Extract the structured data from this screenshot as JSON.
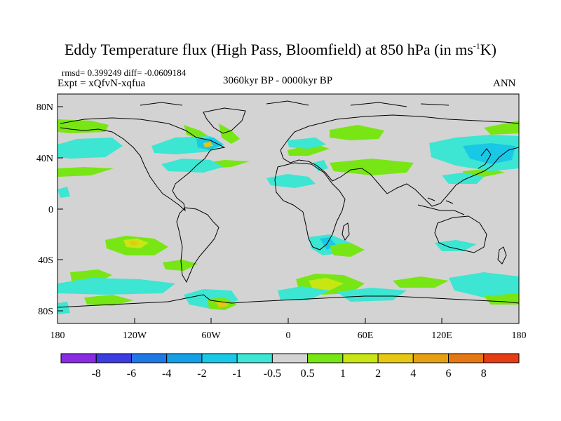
{
  "title": {
    "main": "Eddy Temperature flux (High Pass, Bloomfield) at 850 hPa (in ms",
    "superscript": "-1",
    "suffix": "K)"
  },
  "stats_line": "rmsd= 0.399249 diff= -0.0609184",
  "experiment": "Expt = xQfvN-xqfua",
  "period": "3060kyr BP - 0000kyr BP",
  "season": "ANN",
  "lat_labels": [
    "80N",
    "40N",
    "0",
    "40S",
    "80S"
  ],
  "lon_labels": [
    "180",
    "120W",
    "60W",
    "0",
    "60E",
    "120E",
    "180"
  ],
  "colorbar": {
    "labels": [
      "-8",
      "-6",
      "-4",
      "-2",
      "-1",
      "-0.5",
      "0.5",
      "1",
      "2",
      "4",
      "6",
      "8"
    ],
    "colors": [
      "#8a2be2",
      "#3c3ce0",
      "#1e78e6",
      "#14a0e6",
      "#19c8e6",
      "#3ce6d2",
      "#d3d3d3",
      "#78e614",
      "#c8e614",
      "#e6c814",
      "#e6a014",
      "#e67814",
      "#e63c14"
    ]
  },
  "colors": {
    "ocean_land_background": "#d3d3d3",
    "positive_light": "#78e614",
    "positive_medium": "#c8e614",
    "positive_strong": "#e6c814",
    "negative_light": "#3ce6d2",
    "negative_medium": "#19c8e6",
    "negative_strong": "#14a0e6"
  }
}
